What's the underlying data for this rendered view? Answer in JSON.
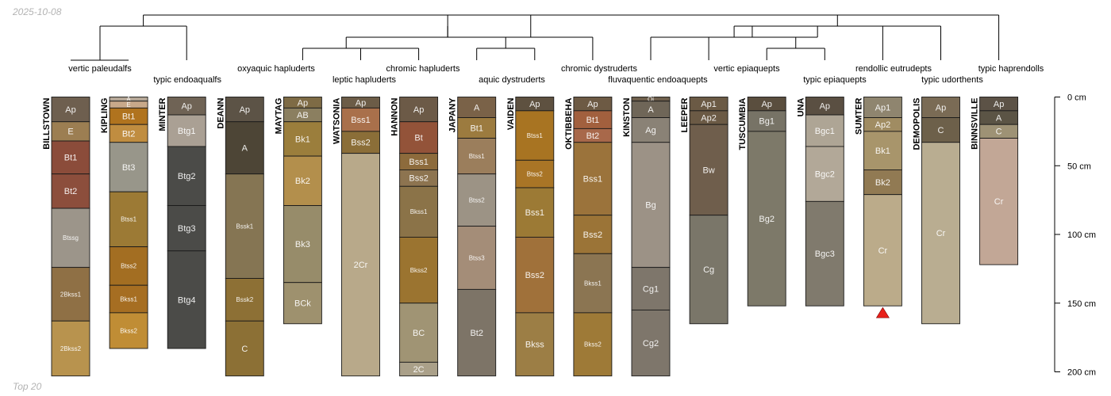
{
  "date_stamp": "2025-10-08",
  "footer_label": "Top 20",
  "depth_unit": "cm",
  "depth_axis": {
    "ticks": [
      0,
      50,
      100,
      150,
      200
    ]
  },
  "taxa": [
    {
      "name": "vertic paleudalfs",
      "profiles": [
        0
      ]
    },
    {
      "name": "typic endoaqualfs",
      "profiles": [
        2
      ]
    },
    {
      "name": "oxyaquic hapluderts",
      "profiles": [
        4
      ]
    },
    {
      "name": "leptic hapluderts",
      "profiles": [
        5
      ]
    },
    {
      "name": "chromic hapluderts",
      "profiles": [
        6
      ]
    },
    {
      "name": "aquic dystruderts",
      "profiles": [
        7
      ]
    },
    {
      "name": "chromic dystruderts",
      "profiles": [
        9
      ]
    },
    {
      "name": "fluvaquentic endoaquepts",
      "profiles": [
        10
      ]
    },
    {
      "name": "vertic epiaquepts",
      "profiles": [
        12
      ]
    },
    {
      "name": "typic epiaquepts",
      "profiles": [
        13
      ]
    },
    {
      "name": "rendollic eutrudepts",
      "profiles": [
        14
      ]
    },
    {
      "name": "typic udorthents",
      "profiles": [
        15
      ]
    },
    {
      "name": "typic haprendolls",
      "profiles": [
        16
      ]
    }
  ],
  "profiles": [
    {
      "name": "BILLSTOWN",
      "horizons": [
        {
          "name": "Ap",
          "top": 0,
          "bottom": 18,
          "color": "#6e5f4f"
        },
        {
          "name": "E",
          "top": 18,
          "bottom": 32,
          "color": "#9c7e52"
        },
        {
          "name": "Bt1",
          "top": 32,
          "bottom": 56,
          "color": "#8b4c3a"
        },
        {
          "name": "Bt2",
          "top": 56,
          "bottom": 81,
          "color": "#8c4e3c"
        },
        {
          "name": "Btssg",
          "top": 81,
          "bottom": 124,
          "color": "#9c958a"
        },
        {
          "name": "2Bkss1",
          "top": 124,
          "bottom": 163,
          "color": "#8f7045"
        },
        {
          "name": "2Bkss2",
          "top": 163,
          "bottom": 203,
          "color": "#b8934e"
        }
      ]
    },
    {
      "name": "KIPLING",
      "horizons": [
        {
          "name": "A",
          "top": 0,
          "bottom": 3,
          "color": "#b5a796"
        },
        {
          "name": "E",
          "top": 3,
          "bottom": 8,
          "color": "#c8a98a"
        },
        {
          "name": "Bt1",
          "top": 8,
          "bottom": 20,
          "color": "#b0731e"
        },
        {
          "name": "Bt2",
          "top": 20,
          "bottom": 33,
          "color": "#c08d40"
        },
        {
          "name": "Bt3",
          "top": 33,
          "bottom": 69,
          "color": "#98968a"
        },
        {
          "name": "Btss1",
          "top": 69,
          "bottom": 109,
          "color": "#9c7a35"
        },
        {
          "name": "Btss2",
          "top": 109,
          "bottom": 137,
          "color": "#a36e22"
        },
        {
          "name": "Bkss1",
          "top": 137,
          "bottom": 157,
          "color": "#a66e22"
        },
        {
          "name": "Bkss2",
          "top": 157,
          "bottom": 183,
          "color": "#c08d35"
        }
      ]
    },
    {
      "name": "MINTER",
      "horizons": [
        {
          "name": "Ap",
          "top": 0,
          "bottom": 13,
          "color": "#6f6355"
        },
        {
          "name": "Btg1",
          "top": 13,
          "bottom": 36,
          "color": "#aaa094"
        },
        {
          "name": "Btg2",
          "top": 36,
          "bottom": 79,
          "color": "#4b4b48"
        },
        {
          "name": "Btg3",
          "top": 79,
          "bottom": 112,
          "color": "#4b4b48"
        },
        {
          "name": "Btg4",
          "top": 112,
          "bottom": 183,
          "color": "#4b4b48"
        }
      ]
    },
    {
      "name": "DEANN",
      "horizons": [
        {
          "name": "Ap",
          "top": 0,
          "bottom": 18,
          "color": "#5c5346"
        },
        {
          "name": "A",
          "top": 18,
          "bottom": 56,
          "color": "#4d4536"
        },
        {
          "name": "Bssk1",
          "top": 56,
          "bottom": 132,
          "color": "#857553"
        },
        {
          "name": "Bssk2",
          "top": 132,
          "bottom": 163,
          "color": "#8d7035"
        },
        {
          "name": "C",
          "top": 163,
          "bottom": 203,
          "color": "#8c7035"
        }
      ]
    },
    {
      "name": "MAYTAG",
      "horizons": [
        {
          "name": "Ap",
          "top": 0,
          "bottom": 8,
          "color": "#7e6b45"
        },
        {
          "name": "AB",
          "top": 8,
          "bottom": 18,
          "color": "#8b7f60"
        },
        {
          "name": "Bk1",
          "top": 18,
          "bottom": 43,
          "color": "#9b7e3c"
        },
        {
          "name": "Bk2",
          "top": 43,
          "bottom": 79,
          "color": "#b38f4c"
        },
        {
          "name": "Bk3",
          "top": 79,
          "bottom": 135,
          "color": "#978c6a"
        },
        {
          "name": "BCk",
          "top": 135,
          "bottom": 165,
          "color": "#9e916e"
        }
      ]
    },
    {
      "name": "WATSONIA",
      "horizons": [
        {
          "name": "Ap",
          "top": 0,
          "bottom": 8,
          "color": "#6c5c47"
        },
        {
          "name": "Bss1",
          "top": 8,
          "bottom": 25,
          "color": "#a9704b"
        },
        {
          "name": "Bss2",
          "top": 25,
          "bottom": 41,
          "color": "#8b6e38"
        },
        {
          "name": "2Cr",
          "top": 41,
          "bottom": 203,
          "color": "#b8a98a"
        }
      ]
    },
    {
      "name": "HANNON",
      "horizons": [
        {
          "name": "Ap",
          "top": 0,
          "bottom": 18,
          "color": "#6c5a47"
        },
        {
          "name": "Bt",
          "top": 18,
          "bottom": 41,
          "color": "#935339"
        },
        {
          "name": "Bss1",
          "top": 41,
          "bottom": 53,
          "color": "#8d6b3c"
        },
        {
          "name": "Bss2",
          "top": 53,
          "bottom": 65,
          "color": "#8d7450"
        },
        {
          "name": "Bkss1",
          "top": 65,
          "bottom": 102,
          "color": "#8b7348"
        },
        {
          "name": "Bkss2",
          "top": 102,
          "bottom": 150,
          "color": "#9b7430"
        },
        {
          "name": "BC",
          "top": 150,
          "bottom": 193,
          "color": "#a09474"
        },
        {
          "name": "2C",
          "top": 193,
          "bottom": 203,
          "color": "#aaa089"
        }
      ]
    },
    {
      "name": "JAPANY",
      "horizons": [
        {
          "name": "A",
          "top": 0,
          "bottom": 15,
          "color": "#7a6248"
        },
        {
          "name": "Bt1",
          "top": 15,
          "bottom": 30,
          "color": "#9c7b3f"
        },
        {
          "name": "Btss1",
          "top": 30,
          "bottom": 56,
          "color": "#9b7e5c"
        },
        {
          "name": "Btss2",
          "top": 56,
          "bottom": 94,
          "color": "#9c9385"
        },
        {
          "name": "Btss3",
          "top": 94,
          "bottom": 140,
          "color": "#a48d78"
        },
        {
          "name": "Bt2",
          "top": 140,
          "bottom": 203,
          "color": "#7d7467"
        }
      ]
    },
    {
      "name": "VAIDEN",
      "horizons": [
        {
          "name": "Ap",
          "top": 0,
          "bottom": 10,
          "color": "#5e5140"
        },
        {
          "name": "Btss1",
          "top": 10,
          "bottom": 46,
          "color": "#a87422"
        },
        {
          "name": "Btss2",
          "top": 46,
          "bottom": 66,
          "color": "#a97526"
        },
        {
          "name": "Bss1",
          "top": 66,
          "bottom": 102,
          "color": "#9c7a35"
        },
        {
          "name": "Bss2",
          "top": 102,
          "bottom": 157,
          "color": "#a0713a"
        },
        {
          "name": "Bkss",
          "top": 157,
          "bottom": 203,
          "color": "#9c7e45"
        }
      ]
    },
    {
      "name": "OKTIBBEHA",
      "horizons": [
        {
          "name": "Ap",
          "top": 0,
          "bottom": 10,
          "color": "#6d5a44"
        },
        {
          "name": "Bt1",
          "top": 10,
          "bottom": 23,
          "color": "#a2603e"
        },
        {
          "name": "Bt2",
          "top": 23,
          "bottom": 33,
          "color": "#a8684a"
        },
        {
          "name": "Bss1",
          "top": 33,
          "bottom": 86,
          "color": "#9b733b"
        },
        {
          "name": "Bss2",
          "top": 86,
          "bottom": 114,
          "color": "#9b7437"
        },
        {
          "name": "Bkss1",
          "top": 114,
          "bottom": 157,
          "color": "#8b7552"
        },
        {
          "name": "Bkss2",
          "top": 157,
          "bottom": 203,
          "color": "#9e7a37"
        }
      ]
    },
    {
      "name": "KINSTON",
      "horizons": [
        {
          "name": "Oi",
          "top": 0,
          "bottom": 3,
          "color": "#6e5f4c"
        },
        {
          "name": "A",
          "top": 3,
          "bottom": 15,
          "color": "#6f6658"
        },
        {
          "name": "Ag",
          "top": 15,
          "bottom": 33,
          "color": "#8a8276"
        },
        {
          "name": "Bg",
          "top": 33,
          "bottom": 124,
          "color": "#9c9286"
        },
        {
          "name": "Cg1",
          "top": 124,
          "bottom": 155,
          "color": "#7e766b"
        },
        {
          "name": "Cg2",
          "top": 155,
          "bottom": 203,
          "color": "#7e766b"
        }
      ]
    },
    {
      "name": "LEEPER",
      "horizons": [
        {
          "name": "Ap1",
          "top": 0,
          "bottom": 10,
          "color": "#6b5a45"
        },
        {
          "name": "Ap2",
          "top": 10,
          "bottom": 20,
          "color": "#6b5a45"
        },
        {
          "name": "Bw",
          "top": 20,
          "bottom": 86,
          "color": "#6f5e4c"
        },
        {
          "name": "Cg",
          "top": 86,
          "bottom": 165,
          "color": "#7a7669"
        }
      ]
    },
    {
      "name": "TUSCUMBIA",
      "horizons": [
        {
          "name": "Ap",
          "top": 0,
          "bottom": 10,
          "color": "#5a4e3e"
        },
        {
          "name": "Bg1",
          "top": 10,
          "bottom": 25,
          "color": "#777366"
        },
        {
          "name": "Bg2",
          "top": 25,
          "bottom": 152,
          "color": "#7d7969"
        }
      ]
    },
    {
      "name": "UNA",
      "horizons": [
        {
          "name": "Ap",
          "top": 0,
          "bottom": 13,
          "color": "#5a4f42"
        },
        {
          "name": "Bgc1",
          "top": 13,
          "bottom": 36,
          "color": "#aea595"
        },
        {
          "name": "Bgc2",
          "top": 36,
          "bottom": 76,
          "color": "#b2a898"
        },
        {
          "name": "Bgc3",
          "top": 76,
          "bottom": 152,
          "color": "#807a6d"
        }
      ]
    },
    {
      "name": "SUMTER",
      "horizons": [
        {
          "name": "Ap1",
          "top": 0,
          "bottom": 15,
          "color": "#8f856f"
        },
        {
          "name": "Ap2",
          "top": 15,
          "bottom": 25,
          "color": "#a08c62"
        },
        {
          "name": "Bk1",
          "top": 25,
          "bottom": 53,
          "color": "#a8956b"
        },
        {
          "name": "Bk2",
          "top": 53,
          "bottom": 71,
          "color": "#917a53"
        },
        {
          "name": "Cr",
          "top": 71,
          "bottom": 152,
          "color": "#bbab8a"
        }
      ],
      "marker": {
        "depth": 152,
        "color": "#e8201a"
      }
    },
    {
      "name": "DEMOPOLIS",
      "horizons": [
        {
          "name": "Ap",
          "top": 0,
          "bottom": 15,
          "color": "#7a6b55"
        },
        {
          "name": "C",
          "top": 15,
          "bottom": 33,
          "color": "#6d604a"
        },
        {
          "name": "Cr",
          "top": 33,
          "bottom": 165,
          "color": "#b9ad91"
        }
      ]
    },
    {
      "name": "BINNSVILLE",
      "horizons": [
        {
          "name": "Ap",
          "top": 0,
          "bottom": 10,
          "color": "#5c5246"
        },
        {
          "name": "A",
          "top": 10,
          "bottom": 20,
          "color": "#5b5445"
        },
        {
          "name": "C",
          "top": 20,
          "bottom": 30,
          "color": "#9e9275"
        },
        {
          "name": "Cr",
          "top": 30,
          "bottom": 122,
          "color": "#c2a796"
        }
      ]
    }
  ]
}
